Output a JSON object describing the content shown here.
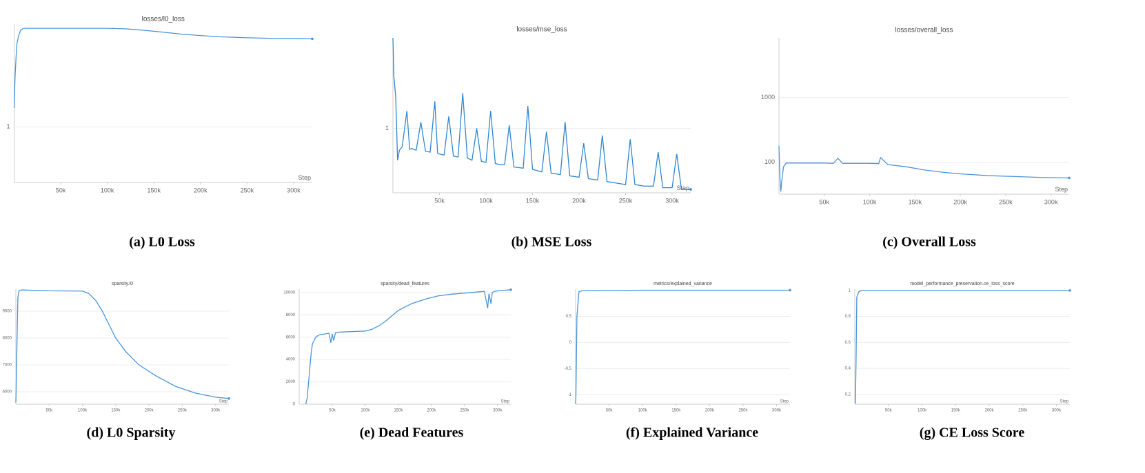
{
  "chart_data": [
    {
      "type": "line",
      "title": "losses/l0_loss",
      "caption": "(a) L0 Loss",
      "xlabel": "Step",
      "color": "#4a94d8",
      "log_y": true,
      "grid": true,
      "x": [
        0,
        1000,
        2000,
        3000,
        5000,
        7000,
        10000,
        20000,
        50000,
        100000,
        120000,
        140000,
        160000,
        180000,
        200000,
        220000,
        250000,
        280000,
        300000,
        320000
      ],
      "values": [
        1.3,
        2.0,
        2.6,
        3.2,
        3.6,
        3.85,
        3.96,
        3.96,
        3.96,
        3.96,
        3.93,
        3.85,
        3.75,
        3.65,
        3.58,
        3.52,
        3.47,
        3.44,
        3.43,
        3.42
      ],
      "xlim": [
        0,
        320000
      ],
      "ylim": [
        0.46,
        4.2
      ],
      "xticks": [
        {
          "value": 50000,
          "label": "50k"
        },
        {
          "value": 100000,
          "label": "100k"
        },
        {
          "value": 150000,
          "label": "150k"
        },
        {
          "value": 200000,
          "label": "200k"
        },
        {
          "value": 250000,
          "label": "250k"
        },
        {
          "value": 300000,
          "label": "300k"
        }
      ],
      "yticks": [
        1
      ]
    },
    {
      "type": "line",
      "title": "losses/mse_loss",
      "caption": "(b) MSE Loss",
      "xlabel": "Step",
      "color": "#2f86d2",
      "log_y": true,
      "grid": true,
      "x": [
        0,
        1000,
        3000,
        5000,
        7000,
        10000,
        15000,
        18000,
        20000,
        25000,
        30000,
        35000,
        40000,
        45000,
        48000,
        50000,
        55000,
        60000,
        65000,
        70000,
        75000,
        80000,
        85000,
        90000,
        95000,
        100000,
        105000,
        110000,
        115000,
        120000,
        125000,
        130000,
        140000,
        145000,
        150000,
        160000,
        165000,
        170000,
        180000,
        185000,
        190000,
        200000,
        205000,
        210000,
        220000,
        225000,
        230000,
        240000,
        250000,
        255000,
        260000,
        270000,
        280000,
        285000,
        290000,
        300000,
        305000,
        310000,
        320000
      ],
      "values": [
        3.9,
        2.2,
        1.6,
        0.62,
        0.72,
        0.76,
        1.3,
        0.73,
        0.74,
        0.72,
        1.1,
        0.71,
        0.7,
        1.5,
        0.69,
        0.68,
        0.67,
        1.2,
        0.66,
        0.65,
        1.7,
        0.64,
        0.62,
        1.0,
        0.61,
        0.6,
        1.3,
        0.59,
        0.58,
        0.58,
        1.05,
        0.56,
        0.55,
        1.4,
        0.54,
        0.52,
        0.95,
        0.51,
        0.5,
        1.1,
        0.49,
        0.48,
        0.8,
        0.47,
        0.46,
        0.9,
        0.45,
        0.44,
        0.43,
        0.85,
        0.43,
        0.42,
        0.42,
        0.7,
        0.41,
        0.41,
        0.68,
        0.4,
        0.4
      ],
      "xlim": [
        0,
        320000
      ],
      "ylim": [
        0.38,
        3.9
      ],
      "xticks": [
        {
          "value": 50000,
          "label": "50k"
        },
        {
          "value": 100000,
          "label": "100k"
        },
        {
          "value": 150000,
          "label": "150k"
        },
        {
          "value": 200000,
          "label": "200k"
        },
        {
          "value": 250000,
          "label": "250k"
        },
        {
          "value": 300000,
          "label": "300k"
        }
      ],
      "yticks": [
        1
      ]
    },
    {
      "type": "line",
      "title": "losses/overall_loss",
      "caption": "(c) Overall Loss",
      "xlabel": "Step",
      "color": "#4a94d8",
      "log_y": true,
      "grid": true,
      "x": [
        0,
        1000,
        2000,
        3000,
        5000,
        8000,
        20000,
        50000,
        60000,
        65000,
        70000,
        100000,
        110000,
        112000,
        120000,
        140000,
        160000,
        180000,
        200000,
        230000,
        260000,
        290000,
        320000
      ],
      "values": [
        180,
        60,
        35,
        50,
        85,
        97,
        97,
        97,
        96,
        115,
        96,
        96,
        95,
        118,
        92,
        85,
        76,
        70,
        66,
        62,
        60,
        58,
        57
      ],
      "xlim": [
        0,
        320000
      ],
      "ylim": [
        32,
        8400
      ],
      "xticks": [
        {
          "value": 50000,
          "label": "50k"
        },
        {
          "value": 100000,
          "label": "100k"
        },
        {
          "value": 150000,
          "label": "150k"
        },
        {
          "value": 200000,
          "label": "200k"
        },
        {
          "value": 250000,
          "label": "250k"
        },
        {
          "value": 300000,
          "label": "300k"
        }
      ],
      "yticks": [
        100,
        1000
      ]
    },
    {
      "type": "line",
      "title": "sparsity.l0",
      "caption": "(d) L0 Sparsity",
      "xlabel": "Step",
      "color": "#4a94d8",
      "log_y": false,
      "grid": true,
      "x": [
        0,
        3000,
        5000,
        10000,
        50000,
        100000,
        110000,
        120000,
        130000,
        140000,
        150000,
        165000,
        185000,
        210000,
        240000,
        270000,
        300000,
        320000
      ],
      "values": [
        5600,
        9500,
        9780,
        9790,
        9760,
        9750,
        9650,
        9400,
        9000,
        8500,
        8000,
        7500,
        7000,
        6600,
        6200,
        5950,
        5800,
        5750
      ],
      "xlim": [
        0,
        320000
      ],
      "ylim": [
        5540,
        9820
      ],
      "xticks": [
        {
          "value": 50000,
          "label": "50k"
        },
        {
          "value": 100000,
          "label": "100k"
        },
        {
          "value": 150000,
          "label": "150k"
        },
        {
          "value": 200000,
          "label": "200k"
        },
        {
          "value": 250000,
          "label": "250k"
        },
        {
          "value": 300000,
          "label": "300k"
        }
      ],
      "yticks": [
        6000,
        7000,
        8000,
        9000
      ]
    },
    {
      "type": "line",
      "title": "sparsity/dead_features",
      "caption": "(e) Dead Features",
      "xlabel": "Step",
      "color": "#4a94d8",
      "log_y": false,
      "grid": true,
      "x": [
        10000,
        12000,
        15000,
        18000,
        20000,
        25000,
        30000,
        40000,
        45000,
        48000,
        50000,
        52000,
        55000,
        60000,
        80000,
        100000,
        110000,
        120000,
        130000,
        140000,
        150000,
        170000,
        190000,
        210000,
        230000,
        250000,
        270000,
        280000,
        285000,
        287000,
        290000,
        292000,
        295000,
        300000,
        310000,
        320000
      ],
      "values": [
        0,
        500,
        2500,
        4500,
        5400,
        6000,
        6200,
        6300,
        6350,
        5500,
        6300,
        5700,
        6400,
        6450,
        6500,
        6550,
        6700,
        7000,
        7400,
        7900,
        8400,
        9000,
        9400,
        9700,
        9850,
        9950,
        10050,
        10100,
        8600,
        9900,
        9000,
        10000,
        10100,
        10150,
        10200,
        10250
      ],
      "xlim": [
        0,
        320000
      ],
      "ylim": [
        0,
        10300
      ],
      "xticks": [
        {
          "value": 50000,
          "label": "50k"
        },
        {
          "value": 100000,
          "label": "100k"
        },
        {
          "value": 150000,
          "label": "150k"
        },
        {
          "value": 200000,
          "label": "200k"
        },
        {
          "value": 250000,
          "label": "250k"
        },
        {
          "value": 300000,
          "label": "300k"
        }
      ],
      "yticks": [
        0,
        2000,
        4000,
        6000,
        8000,
        10000
      ]
    },
    {
      "type": "line",
      "title": "metrics/explained_variance",
      "caption": "(f) Explained Variance",
      "xlabel": "Step",
      "color": "#4a94d8",
      "log_y": false,
      "grid": true,
      "x": [
        0,
        500,
        2000,
        5000,
        10000,
        100000,
        200000,
        320000
      ],
      "values": [
        -1.18,
        -1.0,
        0.5,
        0.97,
        0.99,
        1.0,
        1.0,
        1.0
      ],
      "xlim": [
        0,
        320000
      ],
      "ylim": [
        -1.18,
        1.02
      ],
      "xticks": [
        {
          "value": 50000,
          "label": "50k"
        },
        {
          "value": 100000,
          "label": "100k"
        },
        {
          "value": 150000,
          "label": "150k"
        },
        {
          "value": 200000,
          "label": "200k"
        },
        {
          "value": 250000,
          "label": "250k"
        },
        {
          "value": 300000,
          "label": "300k"
        }
      ],
      "yticks": [
        -1,
        -0.5,
        0,
        0.5
      ]
    },
    {
      "type": "line",
      "title": "model_performance_preservation.ce_loss_score",
      "caption": "(g) CE Loss Score",
      "xlabel": "Step",
      "color": "#4a94d8",
      "log_y": false,
      "grid": true,
      "x": [
        1000,
        2000,
        3000,
        6000,
        10000,
        100000,
        200000,
        320000
      ],
      "values": [
        0.13,
        0.5,
        0.95,
        0.99,
        1.0,
        1.0,
        1.0,
        1.0
      ],
      "xlim": [
        0,
        320000
      ],
      "ylim": [
        0.125,
        1.01
      ],
      "xticks": [
        {
          "value": 50000,
          "label": "50k"
        },
        {
          "value": 100000,
          "label": "100k"
        },
        {
          "value": 150000,
          "label": "150k"
        },
        {
          "value": 200000,
          "label": "200k"
        },
        {
          "value": 250000,
          "label": "250k"
        },
        {
          "value": 300000,
          "label": "300k"
        }
      ],
      "yticks": [
        0.2,
        0.4,
        0.6,
        0.8,
        1
      ]
    }
  ]
}
